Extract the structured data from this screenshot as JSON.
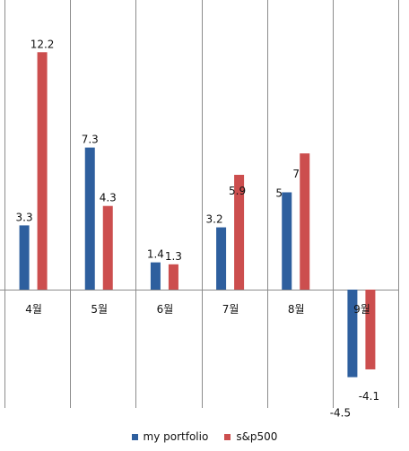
{
  "chart_data": {
    "type": "bar",
    "categories": [
      "4월",
      "5월",
      "6월",
      "7월",
      "8월",
      "9월"
    ],
    "series": [
      {
        "name": "my portfolio",
        "values": [
          3.3,
          7.3,
          1.4,
          3.2,
          5,
          -4.5
        ],
        "labels": [
          "3.3",
          "7.3",
          "1.4",
          "3.2",
          "5",
          "-4.5"
        ],
        "color": "#2e5f9e"
      },
      {
        "name": "s&p500",
        "values": [
          12.2,
          4.3,
          1.3,
          5.9,
          7,
          -4.1
        ],
        "labels": [
          "12.2",
          "4.3",
          "1.3",
          "5.9",
          "7",
          "-4.1"
        ],
        "color": "#cc4e4e"
      }
    ],
    "title": "",
    "xlabel": "",
    "ylabel": "",
    "ylim": [
      -6,
      14.5
    ],
    "grid": "vertical category separators",
    "legend": "bottom-center"
  }
}
